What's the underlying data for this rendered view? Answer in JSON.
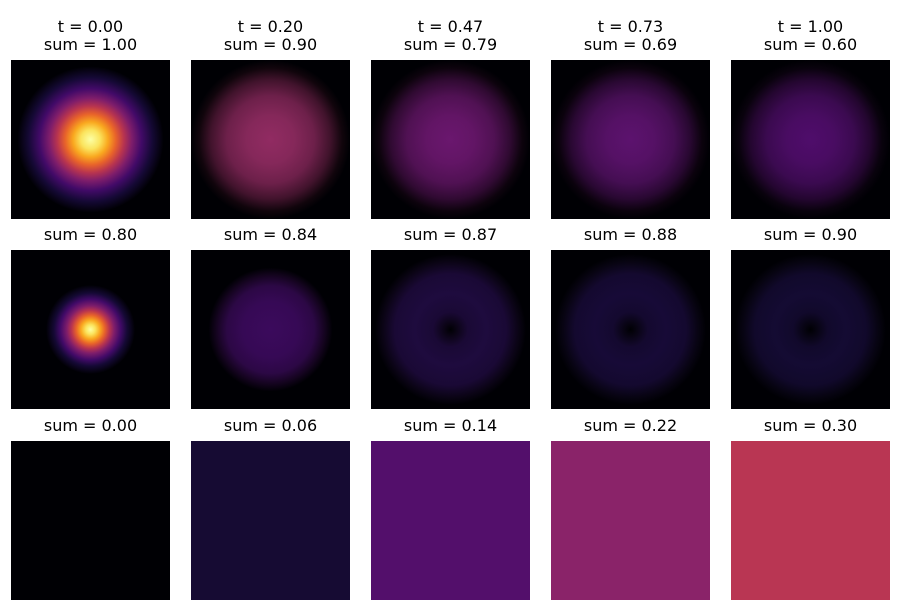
{
  "chart_data": {
    "type": "heatmap",
    "colormap": "inferno",
    "grid": false,
    "axes_visible": false,
    "shared_color_scale": "per-row",
    "rows": [
      {
        "panels": [
          {
            "t_label": "t = 0.00",
            "sum_label": "sum = 1.00",
            "t": 0.0,
            "sum": 1.0,
            "profile": "gaussian-blob",
            "peak_color": "#fcffa4"
          },
          {
            "t_label": "t = 0.20",
            "sum_label": "sum = 0.90",
            "t": 0.2,
            "sum": 0.9,
            "profile": "wide-blob",
            "peak_color": "#912b62"
          },
          {
            "t_label": "t = 0.47",
            "sum_label": "sum = 0.79",
            "t": 0.47,
            "sum": 0.79,
            "profile": "wide-blob",
            "peak_color": "#6a176e"
          },
          {
            "t_label": "t = 0.73",
            "sum_label": "sum = 0.69",
            "t": 0.73,
            "sum": 0.69,
            "profile": "wide-blob",
            "peak_color": "#5c126e"
          },
          {
            "t_label": "t = 1.00",
            "sum_label": "sum = 0.60",
            "t": 1.0,
            "sum": 0.6,
            "profile": "wide-blob",
            "peak_color": "#4f0d6b"
          }
        ]
      },
      {
        "panels": [
          {
            "sum_label": "sum = 0.80",
            "sum": 0.8,
            "profile": "small-blob",
            "peak_color": "#fcffa4"
          },
          {
            "sum_label": "sum = 0.84",
            "sum": 0.84,
            "profile": "disk",
            "peak_color": "#3b0a5c"
          },
          {
            "sum_label": "sum = 0.87",
            "sum": 0.87,
            "profile": "ring",
            "peak_color": "#1e0b3e"
          },
          {
            "sum_label": "sum = 0.88",
            "sum": 0.88,
            "profile": "ring",
            "peak_color": "#170a37"
          },
          {
            "sum_label": "sum = 0.90",
            "sum": 0.9,
            "profile": "ring",
            "peak_color": "#140b33"
          }
        ]
      },
      {
        "panels": [
          {
            "sum_label": "sum = 0.00",
            "sum": 0.0,
            "profile": "uniform",
            "peak_color": "#000004"
          },
          {
            "sum_label": "sum = 0.06",
            "sum": 0.06,
            "profile": "uniform",
            "peak_color": "#160b33"
          },
          {
            "sum_label": "sum = 0.14",
            "sum": 0.14,
            "profile": "uniform",
            "peak_color": "#530f6b"
          },
          {
            "sum_label": "sum = 0.22",
            "sum": 0.22,
            "profile": "uniform",
            "peak_color": "#8a2369"
          },
          {
            "sum_label": "sum = 0.30",
            "sum": 0.3,
            "profile": "uniform",
            "peak_color": "#b93653"
          }
        ]
      }
    ]
  }
}
